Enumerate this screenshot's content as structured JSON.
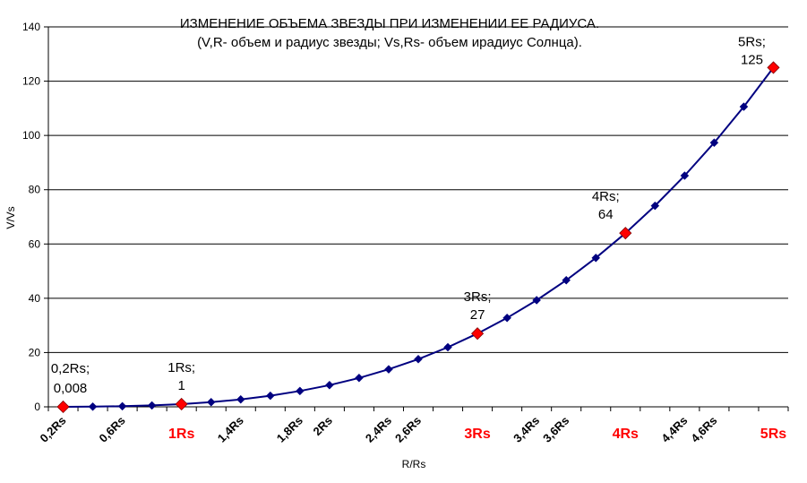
{
  "chart_data": {
    "type": "line",
    "title": "ИЗМЕНЕНИЕ ОБЪЕМА ЗВЕЗДЫ ПРИ ИЗМЕНЕНИИ ЕЕ РАДИУСА.",
    "subtitle": "(V,R- объем и радиус звезды; Vs,Rs- объем ирадиус Солнца).",
    "xlabel": "R/Rs",
    "ylabel": "V/Vs",
    "ylim": [
      0,
      140
    ],
    "yticks": [
      0,
      20,
      40,
      60,
      80,
      100,
      120,
      140
    ],
    "grid": true,
    "colors": {
      "line": "#000080",
      "marker": "#000080",
      "highlight": "#ff0000"
    },
    "x": [
      0.2,
      0.4,
      0.6,
      0.8,
      1.0,
      1.2,
      1.4,
      1.6,
      1.8,
      2.0,
      2.2,
      2.4,
      2.6,
      2.8,
      3.0,
      3.2,
      3.4,
      3.6,
      3.8,
      4.0,
      4.2,
      4.4,
      4.6,
      4.8,
      5.0
    ],
    "series": [
      {
        "values": [
          0.008,
          0.064,
          0.216,
          0.512,
          1,
          1.728,
          2.744,
          4.096,
          5.832,
          8,
          10.648,
          13.824,
          17.576,
          21.952,
          27,
          32.768,
          39.304,
          46.656,
          54.872,
          64,
          74.088,
          85.184,
          97.336,
          110.592,
          125
        ]
      }
    ],
    "xtick_labels": [
      {
        "text": "0,2Rs",
        "index": 0,
        "highlight": false
      },
      {
        "text": "0,6Rs",
        "index": 2,
        "highlight": false
      },
      {
        "text": "1Rs",
        "index": 4,
        "highlight": true
      },
      {
        "text": "1,4Rs",
        "index": 6,
        "highlight": false
      },
      {
        "text": "1,8Rs",
        "index": 8,
        "highlight": false
      },
      {
        "text": "2Rs",
        "index": 9,
        "highlight": false
      },
      {
        "text": "2,4Rs",
        "index": 11,
        "highlight": false
      },
      {
        "text": "2,6Rs",
        "index": 12,
        "highlight": false
      },
      {
        "text": "3Rs",
        "index": 14,
        "highlight": true
      },
      {
        "text": "3,4Rs",
        "index": 16,
        "highlight": false
      },
      {
        "text": "3,6Rs",
        "index": 17,
        "highlight": false
      },
      {
        "text": "4Rs",
        "index": 19,
        "highlight": true
      },
      {
        "text": "4,4Rs",
        "index": 21,
        "highlight": false
      },
      {
        "text": "4,6Rs",
        "index": 22,
        "highlight": false
      },
      {
        "text": "5Rs",
        "index": 24,
        "highlight": true
      }
    ],
    "highlights": [
      {
        "index": 0,
        "label1": "0,2Rs;",
        "label2": "0,008"
      },
      {
        "index": 4,
        "label1": "1Rs;",
        "label2": "1"
      },
      {
        "index": 14,
        "label1": "3Rs;",
        "label2": "27"
      },
      {
        "index": 19,
        "label1": "4Rs;",
        "label2": "64"
      },
      {
        "index": 24,
        "label1": "5Rs;",
        "label2": "125"
      }
    ]
  }
}
